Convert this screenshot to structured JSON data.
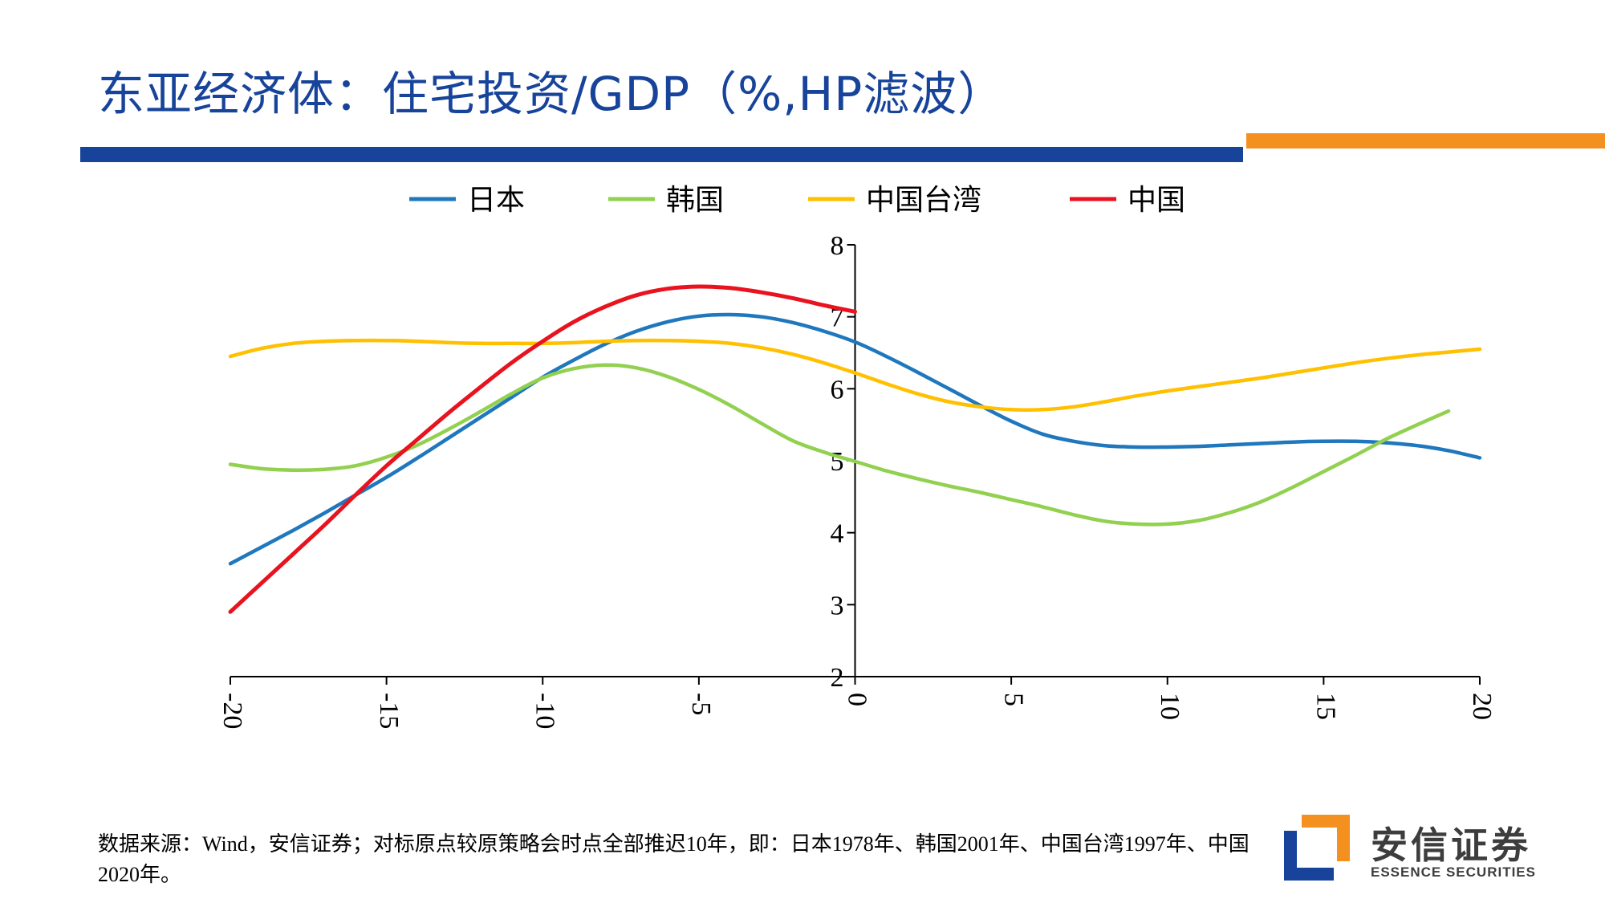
{
  "header": {
    "title": "东亚经济体：住宅投资/GDP（%,HP滤波）"
  },
  "footer": {
    "source": "数据来源：Wind，安信证券；对标原点较原策略会时点全部推迟10年，即：日本1978年、韩国2001年、中国台湾1997年、中国2020年。",
    "logo_cn": "安信证券",
    "logo_en": "ESSENCE SECURITIES"
  },
  "colors": {
    "title_blue": "#17449a",
    "accent_orange": "#f39020"
  },
  "chart_data": {
    "type": "line",
    "title": "",
    "xlabel": "",
    "ylabel": "",
    "xlim": [
      -20,
      20
    ],
    "ylim": [
      2,
      8
    ],
    "xticks": [
      "-20",
      "-15",
      "-10",
      "-5",
      "0",
      "5",
      "10",
      "15",
      "20"
    ],
    "yticks": [
      "2",
      "3",
      "4",
      "5",
      "6",
      "7",
      "8"
    ],
    "legend_position": "top",
    "grid": false,
    "series": [
      {
        "name": "日本",
        "color": "#1f77bd",
        "x": [
          -20,
          -19,
          -18,
          -17,
          -16,
          -15,
          -14,
          -13,
          -12,
          -11,
          -10,
          -9,
          -8,
          -7,
          -6,
          -5,
          -4,
          -3,
          -2,
          -1,
          0,
          1,
          2,
          3,
          4,
          5,
          6,
          7,
          8,
          9,
          10,
          11,
          12,
          13,
          14,
          15,
          16,
          17,
          18,
          19,
          20
        ],
        "y": [
          3.57,
          3.8,
          4.03,
          4.27,
          4.52,
          4.77,
          5.04,
          5.32,
          5.6,
          5.88,
          6.16,
          6.4,
          6.62,
          6.8,
          6.93,
          7.01,
          7.03,
          7.0,
          6.92,
          6.8,
          6.65,
          6.45,
          6.23,
          6.0,
          5.77,
          5.55,
          5.37,
          5.27,
          5.21,
          5.19,
          5.19,
          5.2,
          5.22,
          5.24,
          5.26,
          5.27,
          5.27,
          5.25,
          5.21,
          5.14,
          5.04
        ]
      },
      {
        "name": "韩国",
        "color": "#92d050",
        "x": [
          -20,
          -19,
          -18,
          -17,
          -16,
          -15,
          -14,
          -13,
          -12,
          -11,
          -10,
          -9,
          -8,
          -7,
          -6,
          -5,
          -4,
          -3,
          -2,
          -1,
          0,
          1,
          2,
          3,
          4,
          5,
          6,
          7,
          8,
          9,
          10,
          11,
          12,
          13,
          14,
          15,
          16,
          17,
          18,
          19
        ],
        "y": [
          4.95,
          4.89,
          4.87,
          4.88,
          4.93,
          5.05,
          5.22,
          5.44,
          5.68,
          5.93,
          6.15,
          6.28,
          6.33,
          6.29,
          6.17,
          5.99,
          5.77,
          5.52,
          5.28,
          5.12,
          4.99,
          4.86,
          4.75,
          4.65,
          4.56,
          4.46,
          4.36,
          4.25,
          4.16,
          4.12,
          4.12,
          4.17,
          4.28,
          4.43,
          4.63,
          4.85,
          5.07,
          5.3,
          5.5,
          5.69
        ]
      },
      {
        "name": "中国台湾",
        "color": "#ffc000",
        "x": [
          -20,
          -19,
          -18,
          -17,
          -16,
          -15,
          -14,
          -13,
          -12,
          -11,
          -10,
          -9,
          -8,
          -7,
          -6,
          -5,
          -4,
          -3,
          -2,
          -1,
          0,
          1,
          2,
          3,
          4,
          5,
          6,
          7,
          8,
          9,
          10,
          11,
          12,
          13,
          14,
          15,
          16,
          17,
          18,
          19,
          20
        ],
        "y": [
          6.45,
          6.56,
          6.63,
          6.66,
          6.67,
          6.67,
          6.66,
          6.64,
          6.63,
          6.63,
          6.63,
          6.64,
          6.66,
          6.67,
          6.67,
          6.66,
          6.63,
          6.57,
          6.48,
          6.36,
          6.22,
          6.07,
          5.93,
          5.82,
          5.75,
          5.71,
          5.71,
          5.75,
          5.82,
          5.9,
          5.97,
          6.03,
          6.09,
          6.15,
          6.22,
          6.29,
          6.36,
          6.42,
          6.47,
          6.51,
          6.55
        ]
      },
      {
        "name": "中国",
        "color": "#e8131f",
        "x": [
          -20,
          -19,
          -18,
          -17,
          -16,
          -15,
          -14,
          -13,
          -12,
          -11,
          -10,
          -9,
          -8,
          -7,
          -6,
          -5,
          -4,
          -3,
          -2,
          -1,
          0
        ],
        "y": [
          2.9,
          3.3,
          3.7,
          4.1,
          4.52,
          4.93,
          5.3,
          5.67,
          6.02,
          6.36,
          6.66,
          6.93,
          7.14,
          7.3,
          7.39,
          7.42,
          7.4,
          7.34,
          7.26,
          7.16,
          7.07
        ]
      }
    ]
  }
}
